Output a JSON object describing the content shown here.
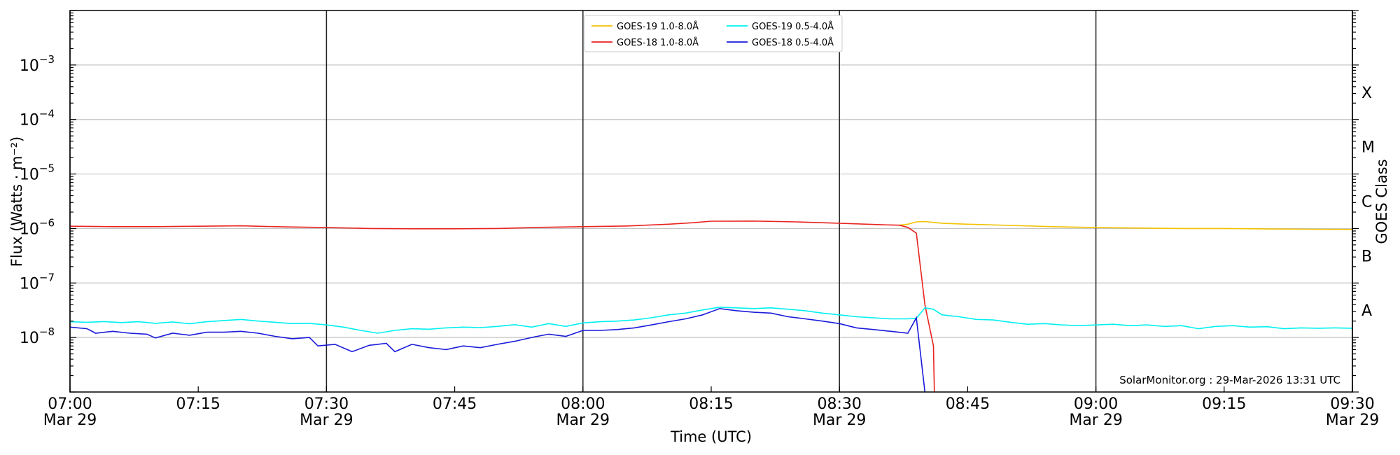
{
  "chart_data": {
    "type": "line",
    "xlabel": "Time (UTC)",
    "ylabel": "Flux (Watts · m⁻²)",
    "ylabel_right": "GOES Class",
    "y_scale": "log",
    "ylim": [
      1e-09,
      0.01
    ],
    "xlim": [
      "2026-03-29T07:00",
      "2026-03-29T09:30"
    ],
    "x_ticks": [
      {
        "time": "07:00",
        "date": "Mar 29"
      },
      {
        "time": "07:15",
        "date": ""
      },
      {
        "time": "07:30",
        "date": "Mar 29"
      },
      {
        "time": "07:45",
        "date": ""
      },
      {
        "time": "08:00",
        "date": "Mar 29"
      },
      {
        "time": "08:15",
        "date": ""
      },
      {
        "time": "08:30",
        "date": "Mar 29"
      },
      {
        "time": "08:45",
        "date": ""
      },
      {
        "time": "09:00",
        "date": "Mar 29"
      },
      {
        "time": "09:15",
        "date": ""
      },
      {
        "time": "09:30",
        "date": "Mar 29"
      }
    ],
    "y_ticks": [
      {
        "value": 1e-08,
        "label": "10",
        "exp": "−8"
      },
      {
        "value": 1e-07,
        "label": "10",
        "exp": "−7"
      },
      {
        "value": 1e-06,
        "label": "10",
        "exp": "−6"
      },
      {
        "value": 1e-05,
        "label": "10",
        "exp": "−5"
      },
      {
        "value": 0.0001,
        "label": "10",
        "exp": "−4"
      },
      {
        "value": 0.001,
        "label": "10",
        "exp": "−3"
      }
    ],
    "goes_classes": [
      {
        "label": "X",
        "value": 0.000316
      },
      {
        "label": "M",
        "value": 3.16e-05
      },
      {
        "label": "C",
        "value": 3.16e-06
      },
      {
        "label": "B",
        "value": 3.16e-07
      },
      {
        "label": "A",
        "value": 3.16e-08
      }
    ],
    "vertical_lines": [
      "07:00",
      "07:30",
      "08:00",
      "08:30",
      "09:00",
      "09:30"
    ],
    "grid": "horizontal",
    "legend_position": "top-center",
    "series": [
      {
        "name": "GOES-19 1.0-8.0Å",
        "color": "#f2c200",
        "points": [
          [
            "08:37",
            1.15e-06
          ],
          [
            "08:38",
            1.2e-06
          ],
          [
            "08:39",
            1.32e-06
          ],
          [
            "08:40",
            1.34e-06
          ],
          [
            "08:42",
            1.25e-06
          ],
          [
            "08:45",
            1.2e-06
          ],
          [
            "08:50",
            1.14e-06
          ],
          [
            "08:55",
            1.08e-06
          ],
          [
            "09:00",
            1.04e-06
          ],
          [
            "09:05",
            1.02e-06
          ],
          [
            "09:10",
            1e-06
          ],
          [
            "09:15",
            1e-06
          ],
          [
            "09:20",
            9.8e-07
          ],
          [
            "09:25",
            9.7e-07
          ],
          [
            "09:30",
            9.6e-07
          ]
        ]
      },
      {
        "name": "GOES-18 1.0-8.0Å",
        "color": "#e8231f",
        "points": [
          [
            "07:00",
            1.1e-06
          ],
          [
            "07:05",
            1.08e-06
          ],
          [
            "07:10",
            1.08e-06
          ],
          [
            "07:15",
            1.1e-06
          ],
          [
            "07:20",
            1.12e-06
          ],
          [
            "07:25",
            1.07e-06
          ],
          [
            "07:30",
            1.04e-06
          ],
          [
            "07:35",
            1e-06
          ],
          [
            "07:40",
            9.9e-07
          ],
          [
            "07:45",
            9.9e-07
          ],
          [
            "07:50",
            1e-06
          ],
          [
            "07:55",
            1.05e-06
          ],
          [
            "08:00",
            1.08e-06
          ],
          [
            "08:05",
            1.11e-06
          ],
          [
            "08:10",
            1.2e-06
          ],
          [
            "08:13",
            1.28e-06
          ],
          [
            "08:15",
            1.36e-06
          ],
          [
            "08:20",
            1.37e-06
          ],
          [
            "08:25",
            1.32e-06
          ],
          [
            "08:30",
            1.25e-06
          ],
          [
            "08:35",
            1.17e-06
          ],
          [
            "08:37",
            1.15e-06
          ],
          [
            "08:38",
            1.05e-06
          ],
          [
            "08:39",
            8.2e-07
          ],
          [
            "08:40",
            4e-08
          ],
          [
            "08:41",
            7e-09
          ],
          [
            "08:41.1",
            1e-09
          ]
        ]
      },
      {
        "name": "GOES-19 0.5-4.0Å",
        "color": "#00f0f0",
        "points": [
          [
            "07:00",
            1.95e-08
          ],
          [
            "07:02",
            1.9e-08
          ],
          [
            "07:04",
            1.96e-08
          ],
          [
            "07:06",
            1.88e-08
          ],
          [
            "07:08",
            1.95e-08
          ],
          [
            "07:10",
            1.82e-08
          ],
          [
            "07:12",
            1.93e-08
          ],
          [
            "07:14",
            1.78e-08
          ],
          [
            "07:16",
            1.95e-08
          ],
          [
            "07:18",
            2.05e-08
          ],
          [
            "07:20",
            2.15e-08
          ],
          [
            "07:22",
            2e-08
          ],
          [
            "07:24",
            1.9e-08
          ],
          [
            "07:26",
            1.8e-08
          ],
          [
            "07:28",
            1.82e-08
          ],
          [
            "07:30",
            1.7e-08
          ],
          [
            "07:32",
            1.55e-08
          ],
          [
            "07:34",
            1.35e-08
          ],
          [
            "07:36",
            1.2e-08
          ],
          [
            "07:38",
            1.35e-08
          ],
          [
            "07:40",
            1.45e-08
          ],
          [
            "07:42",
            1.42e-08
          ],
          [
            "07:44",
            1.5e-08
          ],
          [
            "07:46",
            1.55e-08
          ],
          [
            "07:48",
            1.52e-08
          ],
          [
            "07:50",
            1.6e-08
          ],
          [
            "07:52",
            1.72e-08
          ],
          [
            "07:54",
            1.55e-08
          ],
          [
            "07:56",
            1.8e-08
          ],
          [
            "07:58",
            1.6e-08
          ],
          [
            "08:00",
            1.85e-08
          ],
          [
            "08:02",
            1.95e-08
          ],
          [
            "08:04",
            2e-08
          ],
          [
            "08:06",
            2.1e-08
          ],
          [
            "08:08",
            2.3e-08
          ],
          [
            "08:10",
            2.6e-08
          ],
          [
            "08:12",
            2.8e-08
          ],
          [
            "08:14",
            3.2e-08
          ],
          [
            "08:16",
            3.6e-08
          ],
          [
            "08:18",
            3.5e-08
          ],
          [
            "08:20",
            3.4e-08
          ],
          [
            "08:22",
            3.5e-08
          ],
          [
            "08:24",
            3.3e-08
          ],
          [
            "08:26",
            3.1e-08
          ],
          [
            "08:28",
            2.8e-08
          ],
          [
            "08:30",
            2.6e-08
          ],
          [
            "08:32",
            2.4e-08
          ],
          [
            "08:34",
            2.3e-08
          ],
          [
            "08:36",
            2.2e-08
          ],
          [
            "08:38",
            2.2e-08
          ],
          [
            "08:39",
            2.25e-08
          ],
          [
            "08:40",
            3.5e-08
          ],
          [
            "08:41",
            3.3e-08
          ],
          [
            "08:42",
            2.6e-08
          ],
          [
            "08:44",
            2.4e-08
          ],
          [
            "08:46",
            2.15e-08
          ],
          [
            "08:48",
            2.1e-08
          ],
          [
            "08:50",
            1.9e-08
          ],
          [
            "08:52",
            1.75e-08
          ],
          [
            "08:54",
            1.8e-08
          ],
          [
            "08:56",
            1.7e-08
          ],
          [
            "08:58",
            1.65e-08
          ],
          [
            "09:00",
            1.7e-08
          ],
          [
            "09:02",
            1.75e-08
          ],
          [
            "09:04",
            1.65e-08
          ],
          [
            "09:06",
            1.7e-08
          ],
          [
            "09:08",
            1.6e-08
          ],
          [
            "09:10",
            1.65e-08
          ],
          [
            "09:12",
            1.45e-08
          ],
          [
            "09:14",
            1.6e-08
          ],
          [
            "09:16",
            1.65e-08
          ],
          [
            "09:18",
            1.55e-08
          ],
          [
            "09:20",
            1.58e-08
          ],
          [
            "09:22",
            1.45e-08
          ],
          [
            "09:24",
            1.5e-08
          ],
          [
            "09:26",
            1.48e-08
          ],
          [
            "09:28",
            1.5e-08
          ],
          [
            "09:30",
            1.48e-08
          ]
        ]
      },
      {
        "name": "GOES-18 0.5-4.0Å",
        "color": "#1a1adb",
        "points": [
          [
            "07:00",
            1.55e-08
          ],
          [
            "07:02",
            1.45e-08
          ],
          [
            "07:03",
            1.2e-08
          ],
          [
            "07:05",
            1.3e-08
          ],
          [
            "07:07",
            1.2e-08
          ],
          [
            "07:09",
            1.15e-08
          ],
          [
            "07:10",
            9.8e-09
          ],
          [
            "07:12",
            1.2e-08
          ],
          [
            "07:14",
            1.1e-08
          ],
          [
            "07:16",
            1.25e-08
          ],
          [
            "07:18",
            1.25e-08
          ],
          [
            "07:20",
            1.3e-08
          ],
          [
            "07:22",
            1.2e-08
          ],
          [
            "07:24",
            1.05e-08
          ],
          [
            "07:26",
            9.5e-09
          ],
          [
            "07:28",
            1e-08
          ],
          [
            "07:29",
            7e-09
          ],
          [
            "07:31",
            7.5e-09
          ],
          [
            "07:33",
            5.5e-09
          ],
          [
            "07:35",
            7.2e-09
          ],
          [
            "07:37",
            7.8e-09
          ],
          [
            "07:38",
            5.5e-09
          ],
          [
            "07:40",
            7.5e-09
          ],
          [
            "07:42",
            6.5e-09
          ],
          [
            "07:44",
            6e-09
          ],
          [
            "07:46",
            7e-09
          ],
          [
            "07:48",
            6.5e-09
          ],
          [
            "07:50",
            7.5e-09
          ],
          [
            "07:52",
            8.5e-09
          ],
          [
            "07:54",
            1e-08
          ],
          [
            "07:56",
            1.15e-08
          ],
          [
            "07:58",
            1.05e-08
          ],
          [
            "08:00",
            1.35e-08
          ],
          [
            "08:02",
            1.35e-08
          ],
          [
            "08:04",
            1.4e-08
          ],
          [
            "08:06",
            1.5e-08
          ],
          [
            "08:08",
            1.7e-08
          ],
          [
            "08:10",
            1.95e-08
          ],
          [
            "08:12",
            2.2e-08
          ],
          [
            "08:14",
            2.6e-08
          ],
          [
            "08:16",
            3.4e-08
          ],
          [
            "08:18",
            3.1e-08
          ],
          [
            "08:20",
            2.9e-08
          ],
          [
            "08:22",
            2.8e-08
          ],
          [
            "08:24",
            2.4e-08
          ],
          [
            "08:26",
            2.2e-08
          ],
          [
            "08:28",
            2e-08
          ],
          [
            "08:30",
            1.8e-08
          ],
          [
            "08:32",
            1.5e-08
          ],
          [
            "08:34",
            1.4e-08
          ],
          [
            "08:36",
            1.3e-08
          ],
          [
            "08:38",
            1.2e-08
          ],
          [
            "08:39",
            2.3e-08
          ],
          [
            "08:40",
            1e-09
          ]
        ]
      }
    ],
    "credit": "SolarMonitor.org : 29-Mar-2026 13:31 UTC"
  }
}
